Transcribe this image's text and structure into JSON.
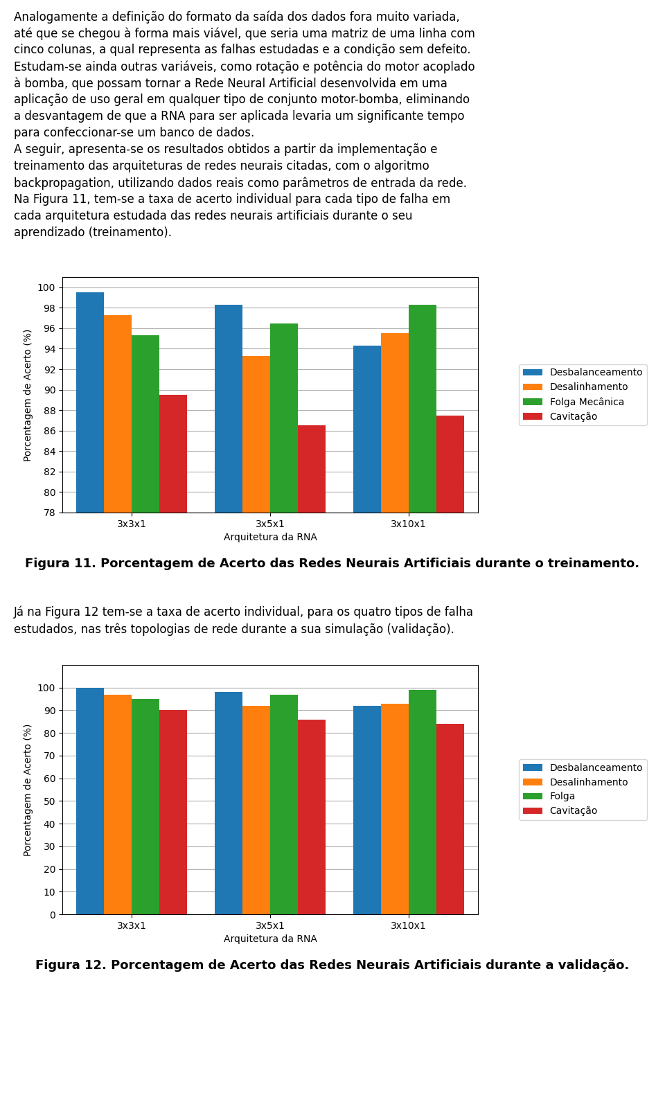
{
  "chart_data": [
    {
      "type": "bar",
      "title": "Figura 11. Porcentagem de Acerto das Redes Neurais Artificiais durante o treinamento.",
      "annotations": [
        "Analogamente a definição do formato da saída dos dados fora muito variada,",
        "até que se chegou à forma mais viável, que seria uma matriz de uma linha com",
        "cinco colunas, a qual representa as falhas estudadas e a condição sem defeito.",
        "Estudam-se ainda outras variáveis, como rotação e potência do motor acoplado",
        "à bomba, que possam tornar a Rede Neural Artificial desenvolvida em uma",
        "aplicação de uso geral em qualquer tipo de conjunto motor-bomba, eliminando",
        "a desvantagem de que a RNA para ser aplicada levaria um significante tempo",
        "para confeccionar-se um banco de dados.",
        "A seguir, apresenta-se os resultados obtidos a partir da implementação e",
        "treinamento das arquiteturas de redes neurais citadas, com o algoritmo",
        "backpropagation, utilizando dados reais como parâmetros de entrada da rede.",
        "Na Figura 11, tem-se a taxa de acerto individual para cada tipo de falha em",
        "cada arquitetura estudada das redes neurais artificiais durante o seu",
        "aprendizado (treinamento)."
      ],
      "x_label": "Arquitetura da RNA",
      "y_label": "Porcentagem de Acerto (%)",
      "categories": [
        "3x3x1",
        "3x5x1",
        "3x10x1"
      ],
      "series": [
        {
          "name": "Desbalanceamento",
          "values": [
            99.5,
            98.3,
            94.3
          ]
        },
        {
          "name": "Desalinhamento",
          "values": [
            97.3,
            93.3,
            95.5
          ]
        },
        {
          "name": "Folga Mecânica",
          "values": [
            95.3,
            96.5,
            98.3
          ]
        },
        {
          "name": "Cavitação",
          "values": [
            89.5,
            86.5,
            87.5
          ]
        }
      ],
      "ylim": [
        78,
        101
      ],
      "yticks": [
        78,
        80,
        82,
        84,
        86,
        88,
        90,
        92,
        94,
        96,
        98,
        100
      ],
      "grid": true,
      "legend": "center right"
    },
    {
      "type": "bar",
      "title": "Figura 12. Porcentagem de Acerto das Redes Neurais Artificiais durante a validação.",
      "annotations": [
        "Já na Figura 12 tem-se a taxa de acerto individual, para os quatro tipos de falha",
        "estudados, nas três topologias de rede durante a sua simulação (validação)."
      ],
      "x_label": "Arquitetura da RNA",
      "y_label": "Porcentagem de Acerto (%)",
      "categories": [
        "3x3x1",
        "3x5x1",
        "3x10x1"
      ],
      "series": [
        {
          "name": "Desbalanceamento",
          "values": [
            100.0,
            98.0,
            92.0
          ]
        },
        {
          "name": "Desalinhamento",
          "values": [
            97.0,
            92.0,
            93.0
          ]
        },
        {
          "name": "Folga",
          "values": [
            95.0,
            97.0,
            99.0
          ]
        },
        {
          "name": "Cavitação",
          "values": [
            90.0,
            86.0,
            84.0
          ]
        }
      ],
      "ylim": [
        0,
        110
      ],
      "yticks": [
        0,
        10,
        20,
        30,
        40,
        50,
        60,
        70,
        80,
        90,
        100
      ],
      "grid": true,
      "legend": "center right"
    }
  ]
}
